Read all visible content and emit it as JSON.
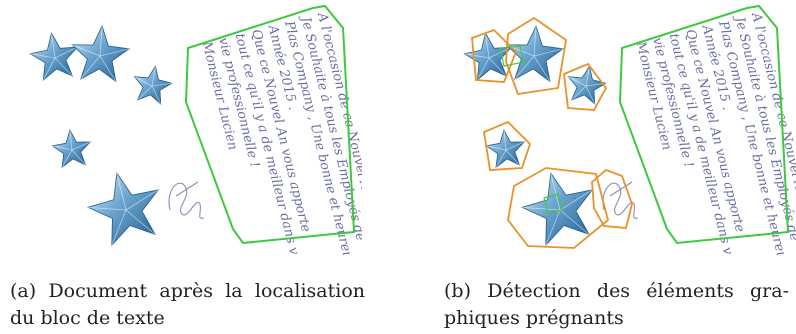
{
  "figure": {
    "panels": [
      {
        "id": "a",
        "caption_tag": "(a)",
        "caption_line1": "Document après la localisation",
        "caption_line2": "du bloc de texte",
        "show_detections": false
      },
      {
        "id": "b",
        "caption_tag": "(b)",
        "caption_line1": "Détection des éléments gra-",
        "caption_line2": "phiques prégnants",
        "show_detections": true
      }
    ],
    "colors": {
      "text_block_outline": "#3fc83f",
      "graphic_outline": "#e8922c",
      "star_light": "#d6eaf6",
      "star_mid": "#6aa3cf",
      "star_dark": "#1f5d8c"
    },
    "handwriting_lines": [
      "A l'occasion de ce Nouvel An",
      "Je Souhaite à tous les Employés de",
      "Plas Company , Une bonne et heureuse",
      "Année 2015 .",
      "Que ce Nouvel An vous apporte",
      "tout ce qu'il y a de meilleur dans votre",
      "vie professionnelle !",
      "Monsieur Lucien"
    ],
    "signature_icon": "handwritten-signature"
  }
}
